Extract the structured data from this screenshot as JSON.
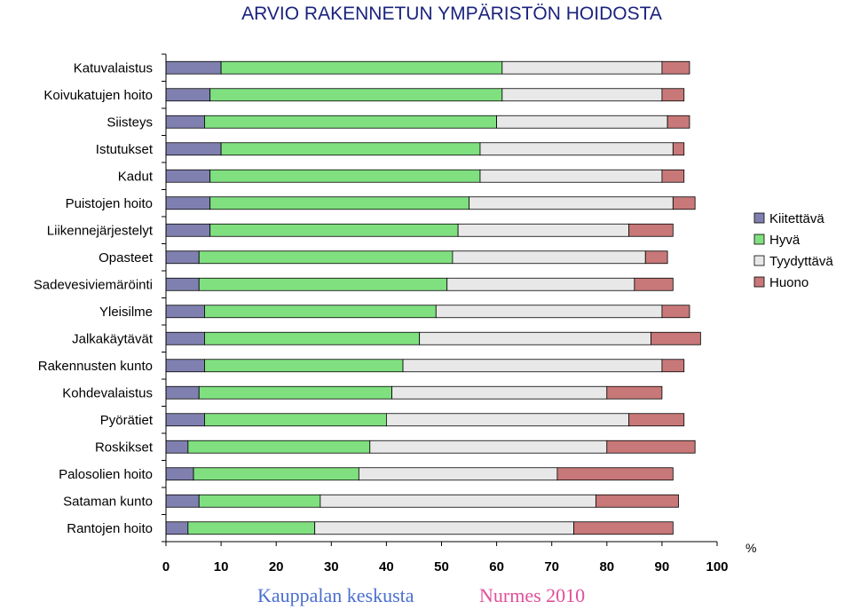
{
  "chart_data": {
    "type": "bar",
    "orientation": "horizontal",
    "stacked": true,
    "title": "ARVIO RAKENNETUN YMPÄRISTÖN HOIDOSTA",
    "unit_label": "%",
    "xlim": [
      0,
      100
    ],
    "xticks": [
      "0",
      "10",
      "20",
      "30",
      "40",
      "50",
      "60",
      "70",
      "80",
      "90",
      "100"
    ],
    "legend_position": "right",
    "grid": false,
    "categories": [
      "Katuvalaistus",
      "Koivukatujen hoito",
      "Siisteys",
      "Istutukset",
      "Kadut",
      "Puistojen hoito",
      "Liikennejärjestelyt",
      "Opasteet",
      "Sadevesiviemäröinti",
      "Yleisilme",
      "Jalkakäytävät",
      "Rakennusten kunto",
      "Kohdevalaistus",
      "Pyörätiet",
      "Roskikset",
      "Palosolien hoito",
      "Sataman kunto",
      "Rantojen hoito"
    ],
    "series": [
      {
        "name": "Kiitettävä",
        "color": "#8080b0",
        "values": [
          10,
          8,
          7,
          10,
          8,
          8,
          8,
          6,
          6,
          7,
          7,
          7,
          6,
          7,
          4,
          5,
          6,
          4
        ]
      },
      {
        "name": "Hyvä",
        "color": "#80e080",
        "values": [
          51,
          53,
          53,
          47,
          49,
          47,
          45,
          46,
          45,
          42,
          39,
          36,
          35,
          33,
          33,
          30,
          22,
          23
        ]
      },
      {
        "name": "Tyydyttävä",
        "color": "#e8e8e8",
        "values": [
          29,
          29,
          31,
          35,
          33,
          37,
          31,
          35,
          34,
          41,
          42,
          47,
          39,
          44,
          43,
          36,
          50,
          47
        ]
      },
      {
        "name": "Huono",
        "color": "#c87878",
        "values": [
          5,
          4,
          4,
          2,
          4,
          4,
          8,
          4,
          7,
          5,
          9,
          4,
          10,
          10,
          16,
          21,
          15,
          18
        ]
      }
    ],
    "footer_left": "Kauppalan keskusta",
    "footer_right": "Nurmes 2010"
  }
}
